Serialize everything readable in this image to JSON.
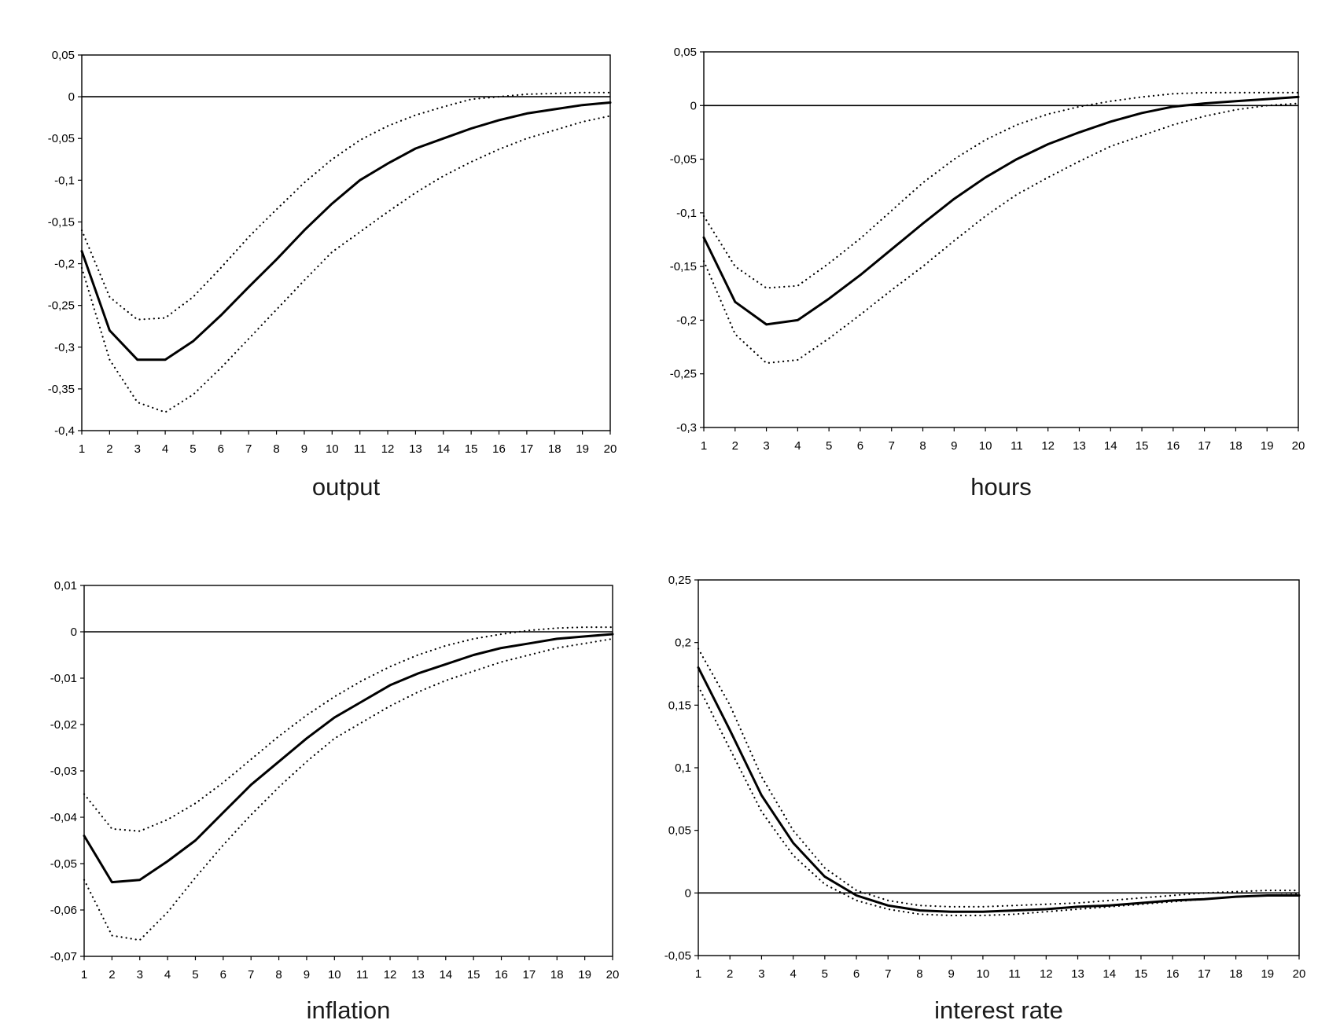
{
  "chart_data": [
    {
      "type": "line",
      "title": "output",
      "x": [
        1,
        2,
        3,
        4,
        5,
        6,
        7,
        8,
        9,
        10,
        11,
        12,
        13,
        14,
        15,
        16,
        17,
        18,
        19,
        20
      ],
      "ylim": [
        -0.4,
        0.05
      ],
      "yticks": [
        0.05,
        0,
        -0.05,
        -0.1,
        -0.15,
        -0.2,
        -0.25,
        -0.3,
        -0.35,
        -0.4
      ],
      "ytick_labels": [
        "0,05",
        "0",
        "-0,05",
        "-0,1",
        "-0,15",
        "-0,2",
        "-0,25",
        "-0,3",
        "-0,35",
        "-0,4"
      ],
      "zero_line": true,
      "grid": false,
      "series": [
        {
          "style": "solid",
          "values": [
            -0.185,
            -0.28,
            -0.315,
            -0.315,
            -0.293,
            -0.262,
            -0.228,
            -0.195,
            -0.16,
            -0.128,
            -0.1,
            -0.08,
            -0.062,
            -0.05,
            -0.038,
            -0.028,
            -0.02,
            -0.015,
            -0.01,
            -0.007
          ]
        },
        {
          "style": "dotted",
          "values": [
            -0.16,
            -0.24,
            -0.267,
            -0.265,
            -0.24,
            -0.205,
            -0.168,
            -0.135,
            -0.103,
            -0.075,
            -0.052,
            -0.035,
            -0.022,
            -0.012,
            -0.003,
            0.0,
            0.003,
            0.004,
            0.005,
            0.005
          ]
        },
        {
          "style": "dotted",
          "values": [
            -0.205,
            -0.315,
            -0.366,
            -0.378,
            -0.357,
            -0.325,
            -0.29,
            -0.255,
            -0.22,
            -0.186,
            -0.162,
            -0.138,
            -0.115,
            -0.095,
            -0.078,
            -0.063,
            -0.05,
            -0.04,
            -0.03,
            -0.023
          ]
        }
      ]
    },
    {
      "type": "line",
      "title": "hours",
      "x": [
        1,
        2,
        3,
        4,
        5,
        6,
        7,
        8,
        9,
        10,
        11,
        12,
        13,
        14,
        15,
        16,
        17,
        18,
        19,
        20
      ],
      "ylim": [
        -0.3,
        0.05
      ],
      "yticks": [
        0.05,
        0,
        -0.05,
        -0.1,
        -0.15,
        -0.2,
        -0.25,
        -0.3
      ],
      "ytick_labels": [
        "0,05",
        "0",
        "-0,05",
        "-0,1",
        "-0,15",
        "-0,2",
        "-0,25",
        "-0,3"
      ],
      "zero_line": true,
      "grid": false,
      "series": [
        {
          "style": "solid",
          "values": [
            -0.123,
            -0.183,
            -0.204,
            -0.2,
            -0.18,
            -0.158,
            -0.134,
            -0.11,
            -0.087,
            -0.067,
            -0.05,
            -0.036,
            -0.025,
            -0.015,
            -0.007,
            -0.001,
            0.002,
            0.004,
            0.006,
            0.008
          ]
        },
        {
          "style": "dotted",
          "values": [
            -0.103,
            -0.15,
            -0.17,
            -0.168,
            -0.147,
            -0.124,
            -0.098,
            -0.072,
            -0.05,
            -0.032,
            -0.018,
            -0.008,
            -0.001,
            0.004,
            0.008,
            0.011,
            0.012,
            0.012,
            0.012,
            0.012
          ]
        },
        {
          "style": "dotted",
          "values": [
            -0.145,
            -0.213,
            -0.24,
            -0.237,
            -0.217,
            -0.195,
            -0.172,
            -0.15,
            -0.126,
            -0.103,
            -0.083,
            -0.067,
            -0.052,
            -0.038,
            -0.028,
            -0.018,
            -0.01,
            -0.004,
            0.0,
            0.002
          ]
        }
      ]
    },
    {
      "type": "line",
      "title": "inflation",
      "x": [
        1,
        2,
        3,
        4,
        5,
        6,
        7,
        8,
        9,
        10,
        11,
        12,
        13,
        14,
        15,
        16,
        17,
        18,
        19,
        20
      ],
      "ylim": [
        -0.07,
        0.01
      ],
      "yticks": [
        0.01,
        0,
        -0.01,
        -0.02,
        -0.03,
        -0.04,
        -0.05,
        -0.06,
        -0.07
      ],
      "ytick_labels": [
        "0,01",
        "0",
        "-0,01",
        "-0,02",
        "-0,03",
        "-0,04",
        "-0,05",
        "-0,06",
        "-0,07"
      ],
      "zero_line": true,
      "grid": false,
      "series": [
        {
          "style": "solid",
          "values": [
            -0.044,
            -0.054,
            -0.0535,
            -0.0495,
            -0.045,
            -0.039,
            -0.033,
            -0.028,
            -0.023,
            -0.0185,
            -0.015,
            -0.0115,
            -0.009,
            -0.007,
            -0.005,
            -0.0035,
            -0.0025,
            -0.0015,
            -0.001,
            -0.0005
          ]
        },
        {
          "style": "dotted",
          "values": [
            -0.035,
            -0.0425,
            -0.043,
            -0.0405,
            -0.037,
            -0.0325,
            -0.0275,
            -0.0225,
            -0.018,
            -0.014,
            -0.0105,
            -0.0075,
            -0.005,
            -0.003,
            -0.0015,
            -0.0005,
            0.0003,
            0.0008,
            0.001,
            0.001
          ]
        },
        {
          "style": "dotted",
          "values": [
            -0.0535,
            -0.0655,
            -0.0665,
            -0.0605,
            -0.053,
            -0.046,
            -0.0395,
            -0.0335,
            -0.028,
            -0.023,
            -0.0195,
            -0.016,
            -0.013,
            -0.0105,
            -0.0085,
            -0.0065,
            -0.005,
            -0.0035,
            -0.0025,
            -0.0015
          ]
        }
      ]
    },
    {
      "type": "line",
      "title": "interest rate",
      "x": [
        1,
        2,
        3,
        4,
        5,
        6,
        7,
        8,
        9,
        10,
        11,
        12,
        13,
        14,
        15,
        16,
        17,
        18,
        19,
        20
      ],
      "ylim": [
        -0.05,
        0.25
      ],
      "yticks": [
        0.25,
        0.2,
        0.15,
        0.1,
        0.05,
        0,
        -0.05
      ],
      "ytick_labels": [
        "0,25",
        "0,2",
        "0,15",
        "0,1",
        "0,05",
        "0",
        "-0,05"
      ],
      "zero_line": true,
      "grid": false,
      "series": [
        {
          "style": "solid",
          "values": [
            0.18,
            0.13,
            0.078,
            0.04,
            0.013,
            -0.002,
            -0.01,
            -0.014,
            -0.015,
            -0.015,
            -0.014,
            -0.013,
            -0.011,
            -0.01,
            -0.008,
            -0.006,
            -0.005,
            -0.003,
            -0.002,
            -0.002
          ]
        },
        {
          "style": "dotted",
          "values": [
            0.195,
            0.15,
            0.093,
            0.05,
            0.02,
            0.002,
            -0.006,
            -0.01,
            -0.011,
            -0.011,
            -0.01,
            -0.009,
            -0.008,
            -0.006,
            -0.004,
            -0.002,
            0.0,
            0.001,
            0.002,
            0.002
          ]
        },
        {
          "style": "dotted",
          "values": [
            0.165,
            0.115,
            0.065,
            0.03,
            0.007,
            -0.006,
            -0.013,
            -0.017,
            -0.018,
            -0.018,
            -0.017,
            -0.015,
            -0.013,
            -0.011,
            -0.009,
            -0.007,
            -0.005,
            -0.003,
            -0.002,
            -0.001
          ]
        }
      ]
    }
  ]
}
